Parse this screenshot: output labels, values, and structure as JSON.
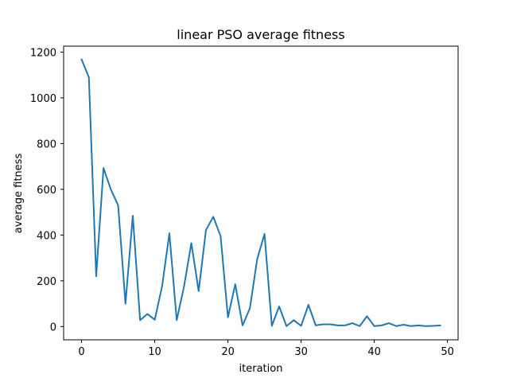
{
  "chart_data": {
    "type": "line",
    "title": "linear PSO average fitness",
    "xlabel": "iteration",
    "ylabel": "average fitness",
    "xlim": [
      -2.45,
      51.45
    ],
    "ylim": [
      -58,
      1226
    ],
    "xticks": [
      0,
      10,
      20,
      30,
      40,
      50
    ],
    "yticks": [
      0,
      200,
      400,
      600,
      800,
      1000,
      1200
    ],
    "grid": false,
    "series": [
      {
        "color": "#1f77b4",
        "x": [
          0,
          1,
          2,
          3,
          4,
          5,
          6,
          7,
          8,
          9,
          10,
          11,
          12,
          13,
          14,
          15,
          16,
          17,
          18,
          19,
          20,
          21,
          22,
          23,
          24,
          25,
          26,
          27,
          28,
          29,
          30,
          31,
          32,
          33,
          34,
          35,
          36,
          37,
          38,
          39,
          40,
          41,
          42,
          43,
          44,
          45,
          46,
          47,
          48,
          49
        ],
        "values": [
          1168,
          1090,
          220,
          693,
          600,
          530,
          100,
          485,
          28,
          55,
          30,
          175,
          408,
          28,
          175,
          365,
          155,
          422,
          480,
          395,
          40,
          185,
          5,
          80,
          295,
          405,
          3,
          88,
          2,
          28,
          3,
          95,
          5,
          10,
          10,
          5,
          5,
          15,
          2,
          45,
          2,
          5,
          15,
          2,
          8,
          2,
          5,
          2,
          3,
          5
        ]
      }
    ]
  }
}
